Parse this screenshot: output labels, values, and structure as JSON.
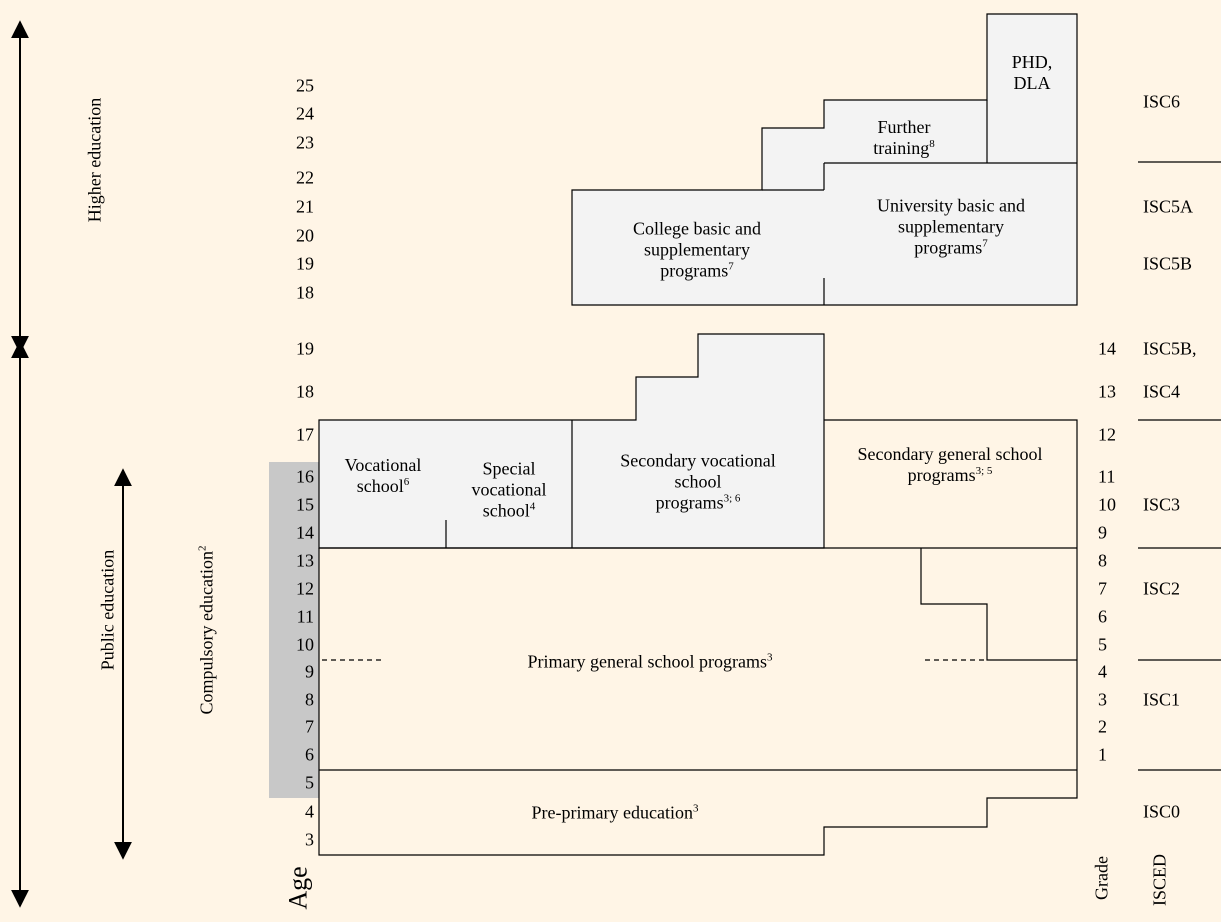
{
  "side_labels": {
    "higher_education": "Higher education",
    "public_education": "Public education",
    "compulsory_education": {
      "text": "Compulsory education",
      "sup": "2"
    }
  },
  "age_axis": {
    "title": "Age",
    "higher": [
      25,
      24,
      23,
      22,
      21,
      20,
      19,
      18
    ],
    "public": [
      19,
      18,
      17,
      16,
      15,
      14,
      13,
      12,
      11,
      10,
      9,
      8,
      7,
      6,
      5,
      4,
      3
    ]
  },
  "grade_axis": {
    "title": "Grade",
    "grades": [
      14,
      13,
      12,
      11,
      10,
      9,
      8,
      7,
      6,
      5,
      4,
      3,
      2,
      1
    ]
  },
  "isced": {
    "title": "ISCED",
    "levels": [
      "ISC6",
      "ISC5A",
      "ISC5B",
      "ISC5B,",
      "ISC4",
      "ISC3",
      "ISC2",
      "ISC1",
      "ISC0"
    ]
  },
  "programs": [
    {
      "lines": [
        "PHD,",
        "DLA"
      ]
    },
    {
      "lines": [
        "Further",
        "training"
      ],
      "sup": "8"
    },
    {
      "lines": [
        "University basic and",
        "supplementary",
        "programs"
      ],
      "sup": "7"
    },
    {
      "lines": [
        "College basic and",
        "supplementary",
        "programs"
      ],
      "sup": "7"
    },
    {
      "lines": [
        "Vocational",
        "school"
      ],
      "sup": "6"
    },
    {
      "lines": [
        "Special",
        "vocational",
        "school"
      ],
      "sup": "4"
    },
    {
      "lines": [
        "Secondary vocational",
        "school",
        "programs"
      ],
      "sup": "3; 6"
    },
    {
      "lines": [
        "Secondary general school",
        "programs"
      ],
      "sup": "3; 5"
    },
    {
      "lines": [
        "Primary general school programs"
      ],
      "sup": "3"
    },
    {
      "lines": [
        "Pre-primary education"
      ],
      "sup": "3"
    }
  ]
}
